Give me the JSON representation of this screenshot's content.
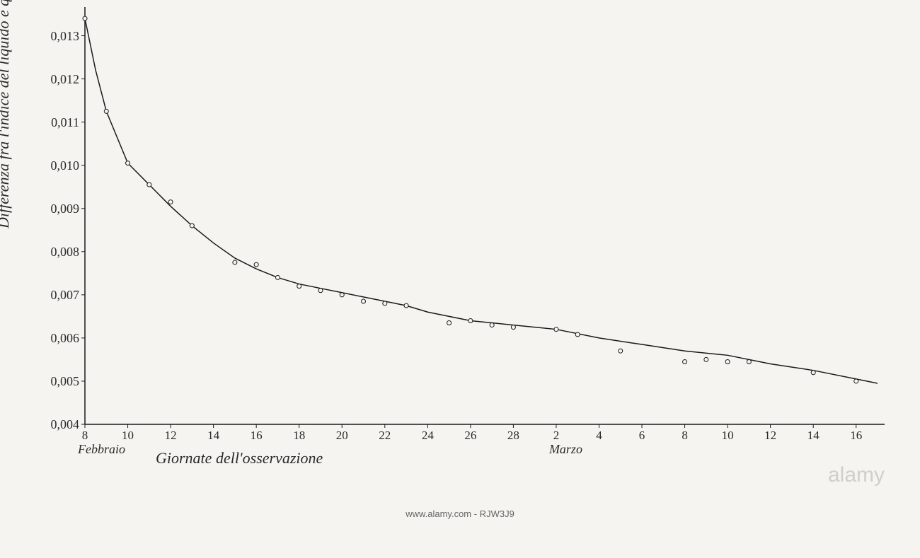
{
  "chart": {
    "type": "line",
    "background_color": "#f5f4f0",
    "line_color": "#1a1a1a",
    "line_width": 1.5,
    "marker_style": "circle",
    "marker_size": 6,
    "marker_fill": "#f5f4f0",
    "marker_stroke": "#1a1a1a",
    "marker_stroke_width": 1,
    "axis_color": "#1a1a1a",
    "axis_width": 1.5,
    "ylabel": "Differenza fra l'indice del liquido e quello dell'acqua",
    "xlabel": "Giornate dell'osservazione",
    "ylim": [
      0.004,
      0.0135
    ],
    "xlim": [
      8,
      45
    ],
    "ytick_values": [
      0.004,
      0.005,
      0.006,
      0.007,
      0.008,
      0.009,
      0.01,
      0.011,
      0.012,
      0.013
    ],
    "ytick_labels": [
      "0,004",
      "0,005",
      "0,006",
      "0,007",
      "0,008",
      "0,009",
      "0,010",
      "0,011",
      "0,012",
      "0,013"
    ],
    "xtick_values": [
      8,
      10,
      12,
      14,
      16,
      18,
      20,
      22,
      24,
      26,
      28,
      30,
      32,
      34,
      36,
      38,
      40,
      42,
      44
    ],
    "xtick_labels": [
      "8",
      "10",
      "12",
      "14",
      "16",
      "18",
      "20",
      "22",
      "24",
      "26",
      "28",
      "2",
      "4",
      "6",
      "8",
      "10",
      "12",
      "14",
      "16"
    ],
    "month_labels": [
      {
        "text": "Febbraio",
        "x": 8
      },
      {
        "text": "Marzo",
        "x": 30
      }
    ],
    "data_points": [
      {
        "x": 8,
        "y": 0.0134
      },
      {
        "x": 9,
        "y": 0.01125
      },
      {
        "x": 10,
        "y": 0.01005
      },
      {
        "x": 11,
        "y": 0.00955
      },
      {
        "x": 12,
        "y": 0.00915
      },
      {
        "x": 13,
        "y": 0.0086
      },
      {
        "x": 15,
        "y": 0.00775
      },
      {
        "x": 16,
        "y": 0.0077
      },
      {
        "x": 17,
        "y": 0.0074
      },
      {
        "x": 18,
        "y": 0.0072
      },
      {
        "x": 19,
        "y": 0.0071
      },
      {
        "x": 20,
        "y": 0.007
      },
      {
        "x": 21,
        "y": 0.00685
      },
      {
        "x": 22,
        "y": 0.0068
      },
      {
        "x": 23,
        "y": 0.00675
      },
      {
        "x": 25,
        "y": 0.00635
      },
      {
        "x": 26,
        "y": 0.0064
      },
      {
        "x": 27,
        "y": 0.0063
      },
      {
        "x": 28,
        "y": 0.00625
      },
      {
        "x": 30,
        "y": 0.0062
      },
      {
        "x": 31,
        "y": 0.00608
      },
      {
        "x": 33,
        "y": 0.0057
      },
      {
        "x": 36,
        "y": 0.00545
      },
      {
        "x": 37,
        "y": 0.0055
      },
      {
        "x": 38,
        "y": 0.00545
      },
      {
        "x": 39,
        "y": 0.00545
      },
      {
        "x": 42,
        "y": 0.0052
      },
      {
        "x": 44,
        "y": 0.005
      }
    ],
    "curve_points": [
      {
        "x": 8,
        "y": 0.0134
      },
      {
        "x": 8.5,
        "y": 0.0122
      },
      {
        "x": 9,
        "y": 0.01125
      },
      {
        "x": 10,
        "y": 0.01005
      },
      {
        "x": 11,
        "y": 0.00955
      },
      {
        "x": 12,
        "y": 0.00905
      },
      {
        "x": 13,
        "y": 0.0086
      },
      {
        "x": 14,
        "y": 0.0082
      },
      {
        "x": 15,
        "y": 0.00785
      },
      {
        "x": 16,
        "y": 0.0076
      },
      {
        "x": 17,
        "y": 0.0074
      },
      {
        "x": 18,
        "y": 0.00725
      },
      {
        "x": 19,
        "y": 0.00715
      },
      {
        "x": 20,
        "y": 0.00705
      },
      {
        "x": 21,
        "y": 0.00695
      },
      {
        "x": 22,
        "y": 0.00685
      },
      {
        "x": 23,
        "y": 0.00675
      },
      {
        "x": 24,
        "y": 0.0066
      },
      {
        "x": 25,
        "y": 0.0065
      },
      {
        "x": 26,
        "y": 0.0064
      },
      {
        "x": 27,
        "y": 0.00635
      },
      {
        "x": 28,
        "y": 0.0063
      },
      {
        "x": 30,
        "y": 0.0062
      },
      {
        "x": 32,
        "y": 0.006
      },
      {
        "x": 34,
        "y": 0.00585
      },
      {
        "x": 36,
        "y": 0.0057
      },
      {
        "x": 38,
        "y": 0.0056
      },
      {
        "x": 40,
        "y": 0.0054
      },
      {
        "x": 42,
        "y": 0.00525
      },
      {
        "x": 44,
        "y": 0.00505
      },
      {
        "x": 45,
        "y": 0.00495
      }
    ],
    "label_fontsize": 22,
    "tick_fontsize": 18
  },
  "watermark": {
    "brand": "alamy",
    "id": "www.alamy.com - RJW3J9"
  }
}
